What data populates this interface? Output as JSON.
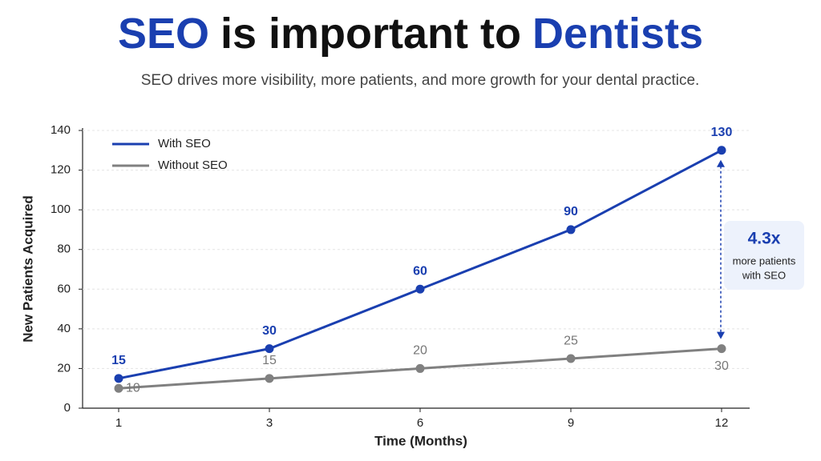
{
  "chart_data": {
    "type": "line",
    "title": [
      "SEO",
      "is important to",
      "Dentists"
    ],
    "title_highlight": [
      0,
      2
    ],
    "title_highlight_color": "#1a3fb0",
    "subtitle": "SEO drives more visibility, more patients, and more growth for your dental practice.",
    "x_label": "Time (Months)",
    "y_label": "New Patients Acquired",
    "categories": [
      "1",
      "3",
      "6",
      "9",
      "12"
    ],
    "series": [
      {
        "name": "With SEO",
        "color": "#1a3fb0",
        "values": [
          15,
          30,
          60,
          90,
          130
        ]
      },
      {
        "name": "Without SEO",
        "color": "#808080",
        "values": [
          10,
          15,
          20,
          25,
          30
        ]
      }
    ],
    "ylim": [
      0,
      140
    ],
    "yticks": [
      0,
      20,
      40,
      60,
      80,
      100,
      120,
      140
    ],
    "grid": true,
    "legend": "top-left",
    "annotation": {
      "value": "4.3x",
      "lines": [
        "more patients",
        "with SEO"
      ]
    }
  }
}
